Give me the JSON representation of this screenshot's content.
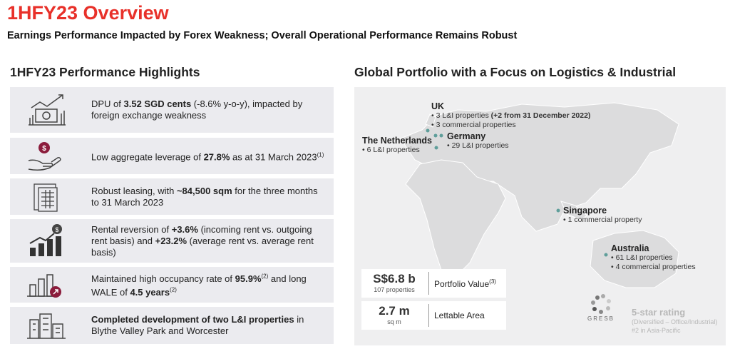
{
  "header": {
    "title": "1HFY23 Overview",
    "subtitle": "Earnings Performance Impacted by Forex Weakness; Overall Operational Performance Remains Robust"
  },
  "highlights": {
    "title": "1HFY23 Performance Highlights",
    "items": [
      [
        {
          "text": "DPU of "
        },
        {
          "text": "3.52 SGD cents",
          "style": "bold"
        },
        {
          "text": " (-8.6% y-o-y), impacted by foreign exchange weakness"
        }
      ],
      [
        {
          "text": "Low aggregate leverage of "
        },
        {
          "text": "27.8%",
          "style": "bold"
        },
        {
          "text": " as at 31 March 2023"
        },
        {
          "text": "(1)",
          "style": "sup"
        }
      ],
      [
        {
          "text": "Robust leasing, with "
        },
        {
          "text": "~84,500 sqm",
          "style": "bold"
        },
        {
          "text": " for the three months to 31 March 2023"
        }
      ],
      [
        {
          "text": "Rental reversion of "
        },
        {
          "text": "+3.6%",
          "style": "bold"
        },
        {
          "text": " (incoming rent vs. outgoing rent basis) and "
        },
        {
          "text": "+23.2%",
          "style": "bold"
        },
        {
          "text": " (average rent vs. average rent basis)"
        }
      ],
      [
        {
          "text": "Maintained high occupancy rate of "
        },
        {
          "text": "95.9%",
          "style": "bold"
        },
        {
          "text": "(2)",
          "style": "sup"
        },
        {
          "text": " and long WALE of "
        },
        {
          "text": "4.5 years",
          "style": "bold"
        },
        {
          "text": "(2)",
          "style": "sup"
        }
      ],
      [
        {
          "text": "Completed development of two L&I properties",
          "style": "bold"
        },
        {
          "text": " in Blythe Valley Park and Worcester"
        }
      ]
    ]
  },
  "portfolio": {
    "title": "Global Portfolio with a Focus on Logistics & Industrial",
    "regions": [
      {
        "name": "UK",
        "lines": [
          [
            {
              "text": "3 L&I properties "
            },
            {
              "text": "(+2 from 31 December 2022)",
              "style": "bold"
            }
          ],
          "3 commercial properties"
        ]
      },
      {
        "name": "The Netherlands",
        "lines": [
          "6 L&I properties"
        ]
      },
      {
        "name": "Germany",
        "lines": [
          "29 L&I properties"
        ]
      },
      {
        "name": "Singapore",
        "lines": [
          "1 commercial property"
        ]
      },
      {
        "name": "Australia",
        "lines": [
          "61 L&I properties",
          "4 commercial properties"
        ]
      }
    ],
    "stats": [
      {
        "value": "S$6.8 b",
        "sub": "107 properties",
        "label": [
          {
            "text": "Portfolio Value"
          },
          {
            "text": "(3)",
            "style": "sup"
          }
        ]
      },
      {
        "value": "2.7 m",
        "sub": "sq m",
        "label": [
          {
            "text": "Lettable Area"
          }
        ]
      }
    ],
    "gresb": {
      "logo": "GRESB",
      "rating": "5-star rating",
      "category": "(Diversified – Office/Industrial)",
      "rank": "#2 in Asia-Pacific"
    }
  }
}
